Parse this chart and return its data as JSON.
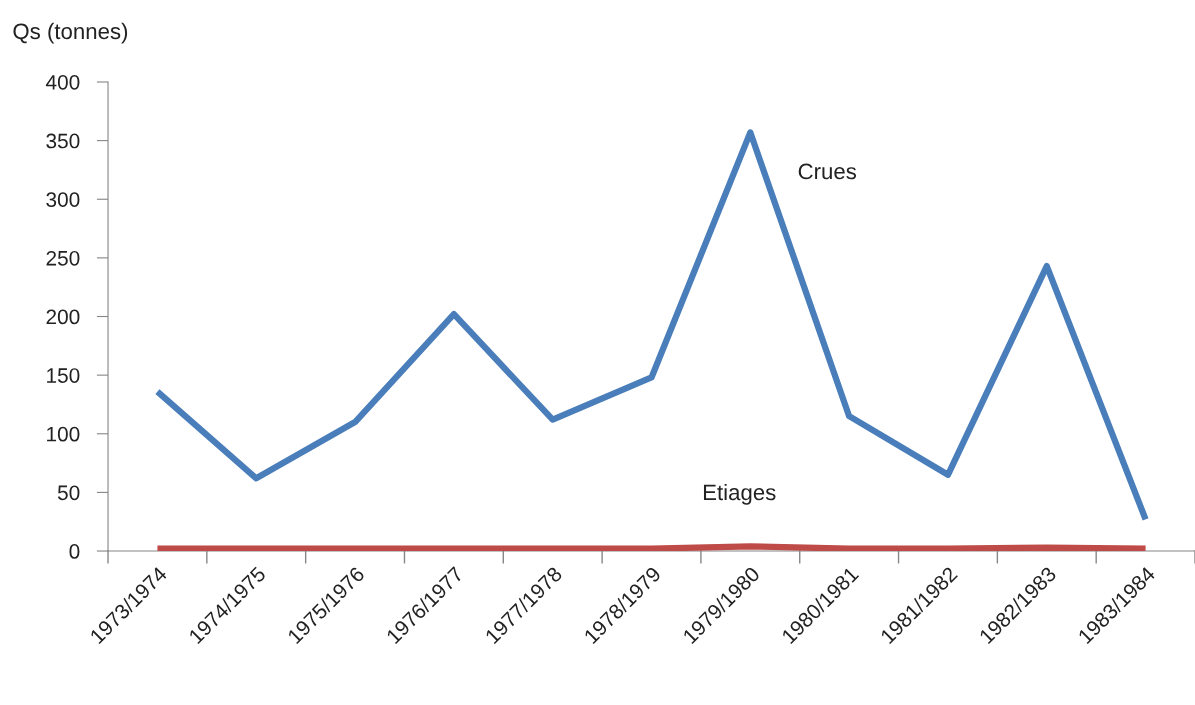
{
  "chart_data": {
    "type": "line",
    "ylabel": "Qs (tonnes)",
    "categories": [
      "1973/1974",
      "1974/1975",
      "1975/1976",
      "1976/1977",
      "1977/1978",
      "1978/1979",
      "1979/1980",
      "1980/1981",
      "1981/1982",
      "1982/1983",
      "1983/1984"
    ],
    "series": [
      {
        "name": "Crues",
        "color": "#4a7ebb",
        "values": [
          136,
          62,
          110,
          202,
          112,
          148,
          357,
          115,
          65,
          243,
          27
        ]
      },
      {
        "name": "Etiages",
        "color": "#be4b48",
        "values": [
          2,
          2,
          2,
          2,
          2,
          2,
          4,
          2,
          2,
          3,
          2
        ]
      }
    ],
    "ylim": [
      0,
      400
    ],
    "yticks": [
      0,
      50,
      100,
      150,
      200,
      250,
      300,
      350,
      400
    ],
    "grid": false,
    "legend": false,
    "marker": "none",
    "line_style": "solid"
  }
}
